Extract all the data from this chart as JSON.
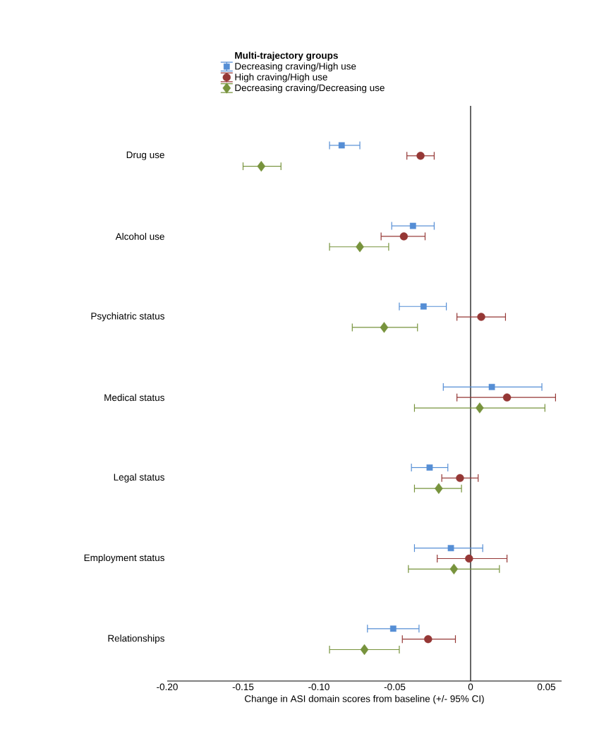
{
  "chart_data": {
    "type": "scatter",
    "orientation": "horizontal",
    "legend_title": "Multi-trajectory groups",
    "legend": "top",
    "xlabel": "Change in ASI domain scores from baseline (+/- 95% CI)",
    "categories": [
      "Drug use",
      "Alcohol use",
      "Psychiatric status",
      "Medical status",
      "Legal status",
      "Employment status",
      "Relationships"
    ],
    "xlim": [
      -0.2,
      0.06
    ],
    "xticks": [
      {
        "value": -0.2,
        "label": "-0.20"
      },
      {
        "value": -0.15,
        "label": "-0.15"
      },
      {
        "value": -0.1,
        "label": "-0.10"
      },
      {
        "value": -0.05,
        "label": "-0.05"
      },
      0,
      0.05
    ],
    "ref_lines": [
      {
        "axis": "x",
        "value": 0,
        "color": "#000000"
      }
    ],
    "series": [
      {
        "name": "Decreasing craving/High use",
        "color": "#558ed5",
        "marker": "square",
        "values": [
          -0.085,
          -0.038,
          -0.031,
          0.014,
          -0.027,
          -0.013,
          -0.051
        ],
        "errors": [
          [
            -0.093,
            -0.073
          ],
          [
            -0.052,
            -0.024
          ],
          [
            -0.047,
            -0.016
          ],
          [
            -0.018,
            0.047
          ],
          [
            -0.039,
            -0.015
          ],
          [
            -0.037,
            0.008
          ],
          [
            -0.068,
            -0.034
          ]
        ]
      },
      {
        "name": "High craving/High use",
        "color": "#953735",
        "marker": "circle",
        "values": [
          -0.033,
          -0.044,
          0.007,
          0.024,
          -0.007,
          -0.001,
          -0.028
        ],
        "errors": [
          [
            -0.042,
            -0.024
          ],
          [
            -0.059,
            -0.03
          ],
          [
            -0.009,
            0.023
          ],
          [
            -0.009,
            0.056
          ],
          [
            -0.019,
            0.005
          ],
          [
            -0.022,
            0.024
          ],
          [
            -0.045,
            -0.01
          ]
        ]
      },
      {
        "name": "Decreasing craving/Decreasing use",
        "color": "#77933c",
        "marker": "diamond",
        "values": [
          -0.138,
          -0.073,
          -0.057,
          0.006,
          -0.021,
          -0.011,
          -0.07
        ],
        "errors": [
          [
            -0.15,
            -0.125
          ],
          [
            -0.093,
            -0.054
          ],
          [
            -0.078,
            -0.035
          ],
          [
            -0.037,
            0.049
          ],
          [
            -0.037,
            -0.006
          ],
          [
            -0.041,
            0.019
          ],
          [
            -0.093,
            -0.047
          ]
        ]
      }
    ]
  }
}
